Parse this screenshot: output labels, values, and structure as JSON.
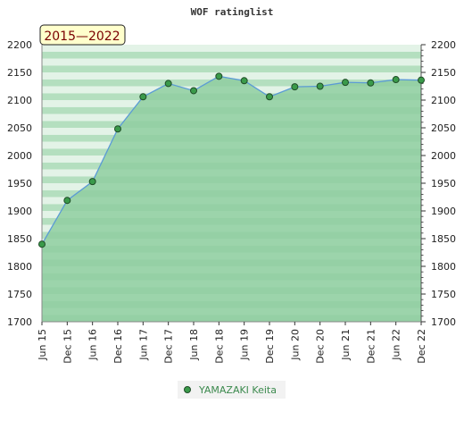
{
  "chart_data": {
    "type": "area",
    "title": "WOF ratinglist",
    "period_badge": "2015—2022",
    "x": [
      "Jun 15",
      "Dec 15",
      "Jun 16",
      "Dec 16",
      "Jun 17",
      "Dec 17",
      "Jun 18",
      "Dec 18",
      "Jun 19",
      "Dec 19",
      "Jun 20",
      "Dec 20",
      "Jun 21",
      "Dec 21",
      "Jun 22",
      "Dec 22"
    ],
    "series": [
      {
        "name": "YAMAZAKI Keita",
        "values": [
          1840,
          1919,
          1953,
          2048,
          2106,
          2130,
          2117,
          2143,
          2135,
          2106,
          2124,
          2125,
          2132,
          2131,
          2137,
          2136
        ]
      }
    ],
    "ylim": [
      1700,
      2200
    ],
    "yticks": [
      1700,
      1750,
      1800,
      1850,
      1900,
      1950,
      2000,
      2050,
      2100,
      2150,
      2200
    ],
    "grid": true,
    "legend_placement": "bottom-center",
    "colors": {
      "line": "#5b9bd5",
      "marker": "#3a9a4a",
      "fill": "#8fcea0",
      "band_dark": "#b4dfbf",
      "band_light": "#e3f3e7",
      "badge_bg": "#ffffcc",
      "legend_text": "#3c8a4e"
    }
  }
}
